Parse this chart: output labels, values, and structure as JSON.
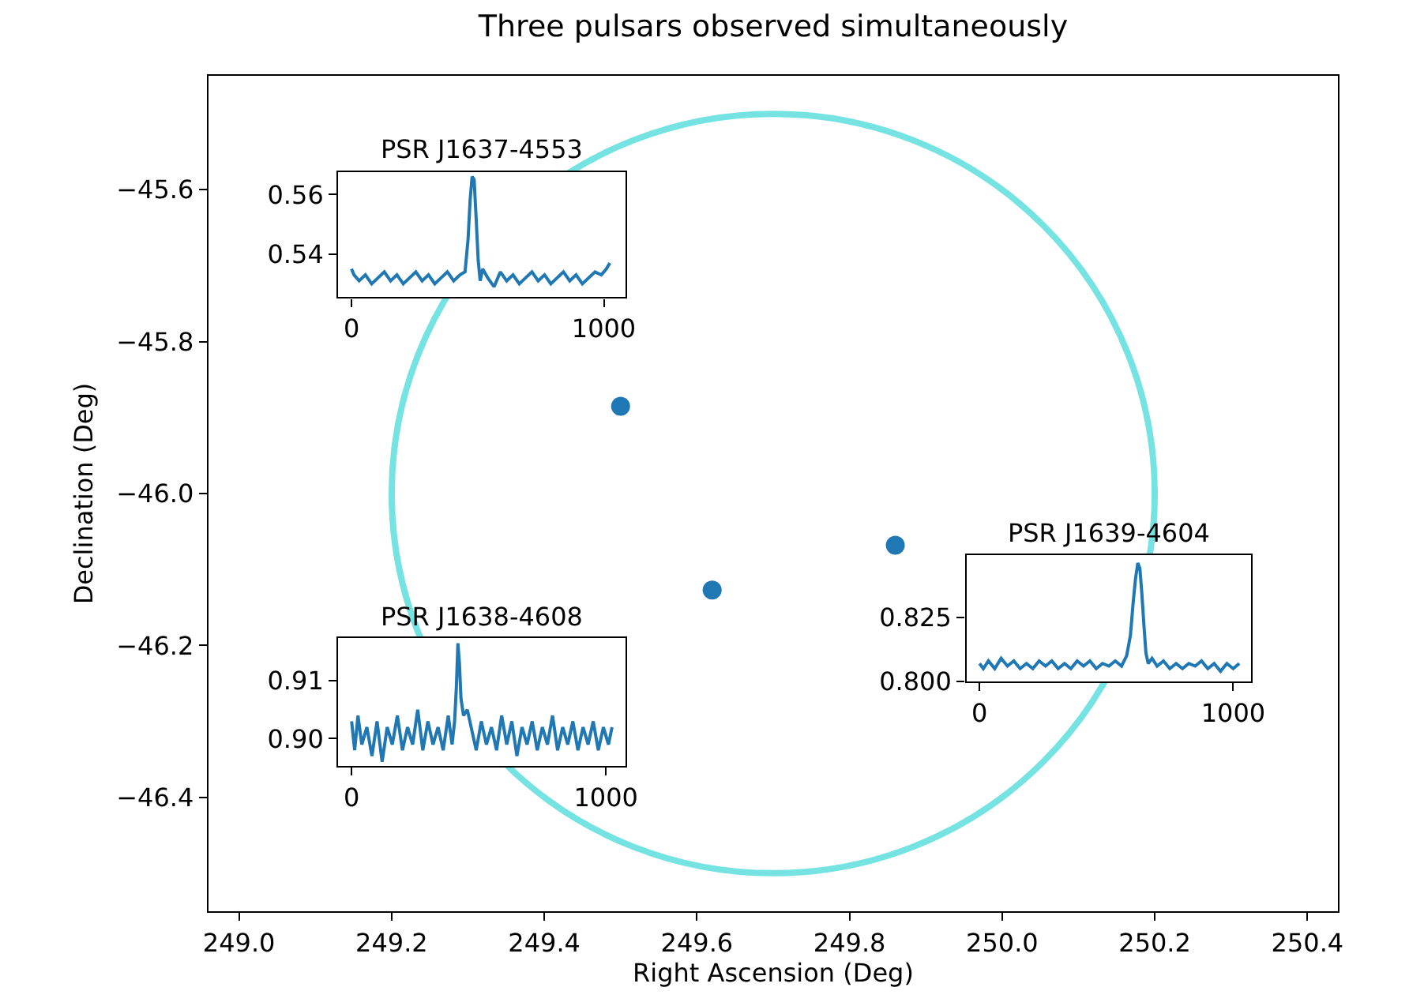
{
  "chart_data": [
    {
      "type": "scatter",
      "title": "Three pulsars observed simultaneously",
      "xlabel": "Right Ascension (Deg)",
      "ylabel": "Declination (Deg)",
      "xlim": [
        248.96,
        250.44
      ],
      "ylim": [
        -46.55,
        -45.45
      ],
      "xticks": [
        {
          "value": 249.0,
          "label": "249.0"
        },
        {
          "value": 249.2,
          "label": "249.2"
        },
        {
          "value": 249.4,
          "label": "249.4"
        },
        {
          "value": 249.6,
          "label": "249.6"
        },
        {
          "value": 249.8,
          "label": "249.8"
        },
        {
          "value": 250.0,
          "label": "250.0"
        },
        {
          "value": 250.2,
          "label": "250.2"
        },
        {
          "value": 250.4,
          "label": "250.4"
        }
      ],
      "yticks": [
        {
          "value": -45.6,
          "label": "−45.6"
        },
        {
          "value": -45.8,
          "label": "−45.8"
        },
        {
          "value": -46.0,
          "label": "−46.0"
        },
        {
          "value": -46.2,
          "label": "−46.2"
        },
        {
          "value": -46.4,
          "label": "−46.4"
        }
      ],
      "grid": false,
      "series": [
        {
          "type": "scatter",
          "marker": "circle",
          "color": "#1f77b4",
          "x": [
            249.5,
            249.62,
            249.86
          ],
          "values": [
            -45.885,
            -46.127,
            -46.068
          ]
        }
      ]
    },
    {
      "type": "line",
      "title": "PSR J1637-4553",
      "xlim": [
        -52,
        1085
      ],
      "ylim": [
        0.5255,
        0.5676
      ],
      "xticks": [
        0,
        1000
      ],
      "yticks": [
        0.54,
        0.56
      ],
      "grid": false,
      "marker": "none",
      "series": [
        {
          "color": "#1f77b4",
          "x": [
            0,
            10,
            30,
            55,
            80,
            105,
            130,
            155,
            180,
            205,
            230,
            255,
            280,
            305,
            330,
            355,
            380,
            405,
            430,
            450,
            462,
            470,
            478,
            486,
            494,
            502,
            510,
            520,
            540,
            565,
            590,
            615,
            640,
            665,
            690,
            715,
            740,
            765,
            790,
            815,
            840,
            865,
            890,
            915,
            940,
            965,
            990,
            1010,
            1024
          ],
          "values": [
            0.535,
            0.533,
            0.531,
            0.533,
            0.53,
            0.532,
            0.534,
            0.531,
            0.533,
            0.53,
            0.532,
            0.534,
            0.531,
            0.533,
            0.53,
            0.532,
            0.534,
            0.531,
            0.533,
            0.534,
            0.545,
            0.558,
            0.566,
            0.565,
            0.552,
            0.538,
            0.531,
            0.535,
            0.532,
            0.529,
            0.534,
            0.531,
            0.533,
            0.53,
            0.532,
            0.534,
            0.531,
            0.533,
            0.53,
            0.532,
            0.534,
            0.531,
            0.533,
            0.53,
            0.532,
            0.534,
            0.533,
            0.535,
            0.537
          ]
        }
      ]
    },
    {
      "type": "line",
      "title": "PSR J1638-4608",
      "xlim": [
        -52,
        1076
      ],
      "ylim": [
        0.8953,
        0.9174
      ],
      "xticks": [
        0,
        1000
      ],
      "yticks": [
        {
          "value": 0.9,
          "label": "0.90"
        },
        {
          "value": 0.91,
          "label": "0.91"
        }
      ],
      "grid": false,
      "marker": "none",
      "series": [
        {
          "color": "#1f77b4",
          "x": [
            0,
            12,
            25,
            40,
            60,
            80,
            100,
            120,
            140,
            160,
            180,
            200,
            220,
            240,
            260,
            280,
            300,
            320,
            340,
            360,
            380,
            395,
            405,
            412,
            418,
            424,
            430,
            440,
            455,
            470,
            490,
            510,
            530,
            550,
            570,
            590,
            610,
            630,
            650,
            670,
            690,
            710,
            730,
            750,
            770,
            790,
            810,
            830,
            850,
            870,
            890,
            910,
            930,
            950,
            970,
            990,
            1010,
            1024
          ],
          "values": [
            0.903,
            0.898,
            0.904,
            0.899,
            0.902,
            0.897,
            0.903,
            0.896,
            0.902,
            0.899,
            0.904,
            0.898,
            0.902,
            0.899,
            0.905,
            0.898,
            0.903,
            0.899,
            0.902,
            0.898,
            0.904,
            0.899,
            0.903,
            0.909,
            0.9165,
            0.913,
            0.907,
            0.904,
            0.905,
            0.902,
            0.898,
            0.903,
            0.899,
            0.902,
            0.898,
            0.904,
            0.899,
            0.903,
            0.897,
            0.902,
            0.899,
            0.903,
            0.898,
            0.902,
            0.899,
            0.904,
            0.898,
            0.902,
            0.899,
            0.903,
            0.898,
            0.902,
            0.899,
            0.903,
            0.898,
            0.902,
            0.899,
            0.902
          ]
        }
      ]
    },
    {
      "type": "line",
      "title": "PSR J1639-4604",
      "xlim": [
        -52,
        1070
      ],
      "ylim": [
        0.8,
        0.849
      ],
      "xticks": [
        0,
        1000
      ],
      "yticks": [
        {
          "value": 0.8,
          "label": "0.800"
        },
        {
          "value": 0.825,
          "label": "0.825"
        }
      ],
      "grid": false,
      "marker": "none",
      "series": [
        {
          "color": "#1f77b4",
          "x": [
            0,
            15,
            35,
            60,
            85,
            110,
            135,
            160,
            185,
            210,
            235,
            260,
            285,
            310,
            335,
            360,
            385,
            410,
            435,
            460,
            485,
            510,
            535,
            560,
            580,
            595,
            605,
            615,
            624,
            632,
            640,
            648,
            656,
            665,
            680,
            700,
            725,
            750,
            775,
            800,
            825,
            850,
            875,
            900,
            925,
            950,
            975,
            1000,
            1024
          ],
          "values": [
            0.807,
            0.805,
            0.808,
            0.805,
            0.809,
            0.806,
            0.808,
            0.805,
            0.807,
            0.805,
            0.808,
            0.806,
            0.808,
            0.805,
            0.807,
            0.805,
            0.808,
            0.806,
            0.808,
            0.805,
            0.807,
            0.806,
            0.808,
            0.806,
            0.81,
            0.818,
            0.83,
            0.84,
            0.846,
            0.844,
            0.834,
            0.822,
            0.811,
            0.807,
            0.809,
            0.806,
            0.808,
            0.805,
            0.807,
            0.805,
            0.807,
            0.806,
            0.808,
            0.805,
            0.807,
            0.804,
            0.807,
            0.805,
            0.807
          ]
        }
      ]
    }
  ]
}
